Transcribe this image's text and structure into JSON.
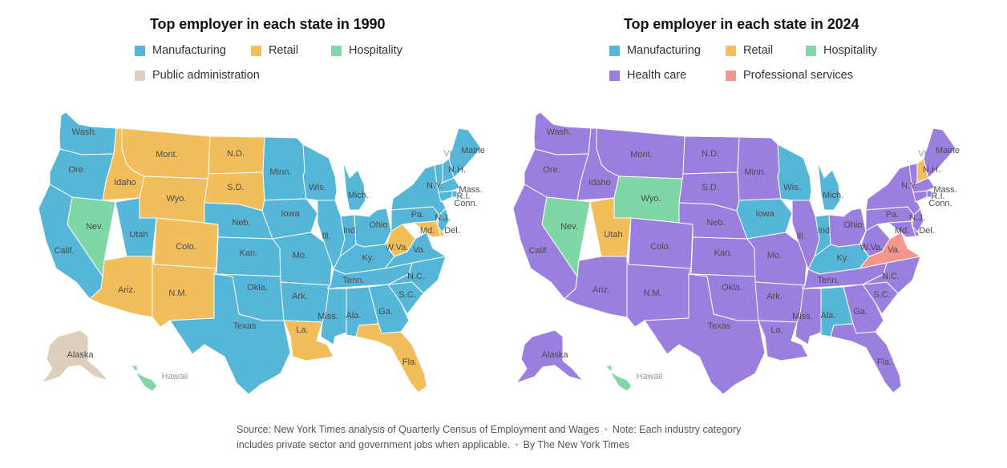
{
  "colors": {
    "manufacturing": "#55b6d8",
    "retail": "#f2be5c",
    "hospitality": "#7fd7a6",
    "public_administration": "#ddcfbb",
    "health_care": "#9b7fdf",
    "professional_services": "#f3968c"
  },
  "maps": [
    {
      "title": "Top employer in each state in 1990",
      "legend": [
        {
          "label": "Manufacturing",
          "color": "#55b6d8"
        },
        {
          "label": "Retail",
          "color": "#f2be5c"
        },
        {
          "label": "Hospitality",
          "color": "#7fd7a6"
        },
        {
          "label": "Public administration",
          "color": "#ddcfbb"
        }
      ],
      "states": {
        "wash": "manufacturing",
        "ore": "manufacturing",
        "calif": "manufacturing",
        "idaho": "retail",
        "nev": "hospitality",
        "utah": "manufacturing",
        "ariz": "retail",
        "mont": "retail",
        "wyo": "retail",
        "colo": "retail",
        "nm": "retail",
        "nd": "retail",
        "sd": "retail",
        "neb": "manufacturing",
        "kan": "manufacturing",
        "okla": "manufacturing",
        "texas": "manufacturing",
        "minn": "manufacturing",
        "iowa": "manufacturing",
        "mo": "manufacturing",
        "ark": "manufacturing",
        "la": "retail",
        "wis": "manufacturing",
        "ill": "manufacturing",
        "mich": "manufacturing",
        "ind": "manufacturing",
        "ohio": "manufacturing",
        "ky": "manufacturing",
        "tenn": "manufacturing",
        "miss": "manufacturing",
        "ala": "manufacturing",
        "ga": "manufacturing",
        "fla": "retail",
        "sc": "manufacturing",
        "nc": "manufacturing",
        "va": "manufacturing",
        "wva": "retail",
        "md": "retail",
        "del": "retail",
        "pa": "manufacturing",
        "nj": "manufacturing",
        "ny": "manufacturing",
        "vt": "manufacturing",
        "nh": "manufacturing",
        "maine": "manufacturing",
        "mass": "manufacturing",
        "ri": "manufacturing",
        "conn": "manufacturing",
        "alaska": "public_administration",
        "hawaii": "hospitality"
      }
    },
    {
      "title": "Top employer in each state in 2024",
      "legend": [
        {
          "label": "Manufacturing",
          "color": "#55b6d8"
        },
        {
          "label": "Retail",
          "color": "#f2be5c"
        },
        {
          "label": "Hospitality",
          "color": "#7fd7a6"
        },
        {
          "label": "Health care",
          "color": "#9b7fdf"
        },
        {
          "label": "Professional services",
          "color": "#f3968c"
        }
      ],
      "states": {
        "wash": "health_care",
        "ore": "health_care",
        "calif": "health_care",
        "idaho": "health_care",
        "nev": "hospitality",
        "utah": "retail",
        "ariz": "health_care",
        "mont": "health_care",
        "wyo": "hospitality",
        "colo": "health_care",
        "nm": "health_care",
        "nd": "health_care",
        "sd": "health_care",
        "neb": "health_care",
        "kan": "health_care",
        "okla": "health_care",
        "texas": "health_care",
        "minn": "health_care",
        "iowa": "manufacturing",
        "mo": "health_care",
        "ark": "health_care",
        "la": "health_care",
        "wis": "manufacturing",
        "ill": "health_care",
        "mich": "manufacturing",
        "ind": "manufacturing",
        "ohio": "health_care",
        "ky": "manufacturing",
        "tenn": "health_care",
        "miss": "health_care",
        "ala": "manufacturing",
        "ga": "health_care",
        "fla": "health_care",
        "sc": "health_care",
        "nc": "health_care",
        "va": "professional_services",
        "wva": "health_care",
        "md": "health_care",
        "del": "health_care",
        "pa": "health_care",
        "nj": "health_care",
        "ny": "health_care",
        "vt": "health_care",
        "nh": "retail",
        "maine": "health_care",
        "mass": "health_care",
        "ri": "health_care",
        "conn": "health_care",
        "alaska": "health_care",
        "hawaii": "hospitality"
      }
    }
  ],
  "state_labels": {
    "wash": "Wash.",
    "ore": "Ore.",
    "calif": "Calif.",
    "idaho": "Idaho",
    "nev": "Nev.",
    "utah": "Utah",
    "ariz": "Ariz.",
    "mont": "Mont.",
    "wyo": "Wyo.",
    "colo": "Colo.",
    "nm": "N.M.",
    "nd": "N.D.",
    "sd": "S.D.",
    "neb": "Neb.",
    "kan": "Kan.",
    "okla": "Okla.",
    "texas": "Texas",
    "minn": "Minn.",
    "iowa": "Iowa",
    "mo": "Mo.",
    "ark": "Ark.",
    "la": "La.",
    "wis": "Wis.",
    "ill": "Ill.",
    "mich": "Mich.",
    "ind": "Ind.",
    "ohio": "Ohio",
    "ky": "Ky.",
    "tenn": "Tenn.",
    "miss": "Miss.",
    "ala": "Ala.",
    "ga": "Ga.",
    "fla": "Fla.",
    "sc": "S.C.",
    "nc": "N.C.",
    "va": "Va.",
    "wva": "W.Va.",
    "md": "Md.",
    "del": "Del.",
    "pa": "Pa.",
    "nj": "N.J.",
    "ny": "N.Y.",
    "vt": "Vt.",
    "nh": "N.H.",
    "maine": "Maine",
    "mass": "Mass.",
    "ri": "R.I.",
    "conn": "Conn.",
    "alaska": "Alaska",
    "hawaii": "Hawaii"
  },
  "source": {
    "text": "Source: New York Times analysis of Quarterly Census of Employment and Wages",
    "note": "Note: Each industry category includes private sector and government jobs when applicable.",
    "byline": "By The New York Times"
  }
}
